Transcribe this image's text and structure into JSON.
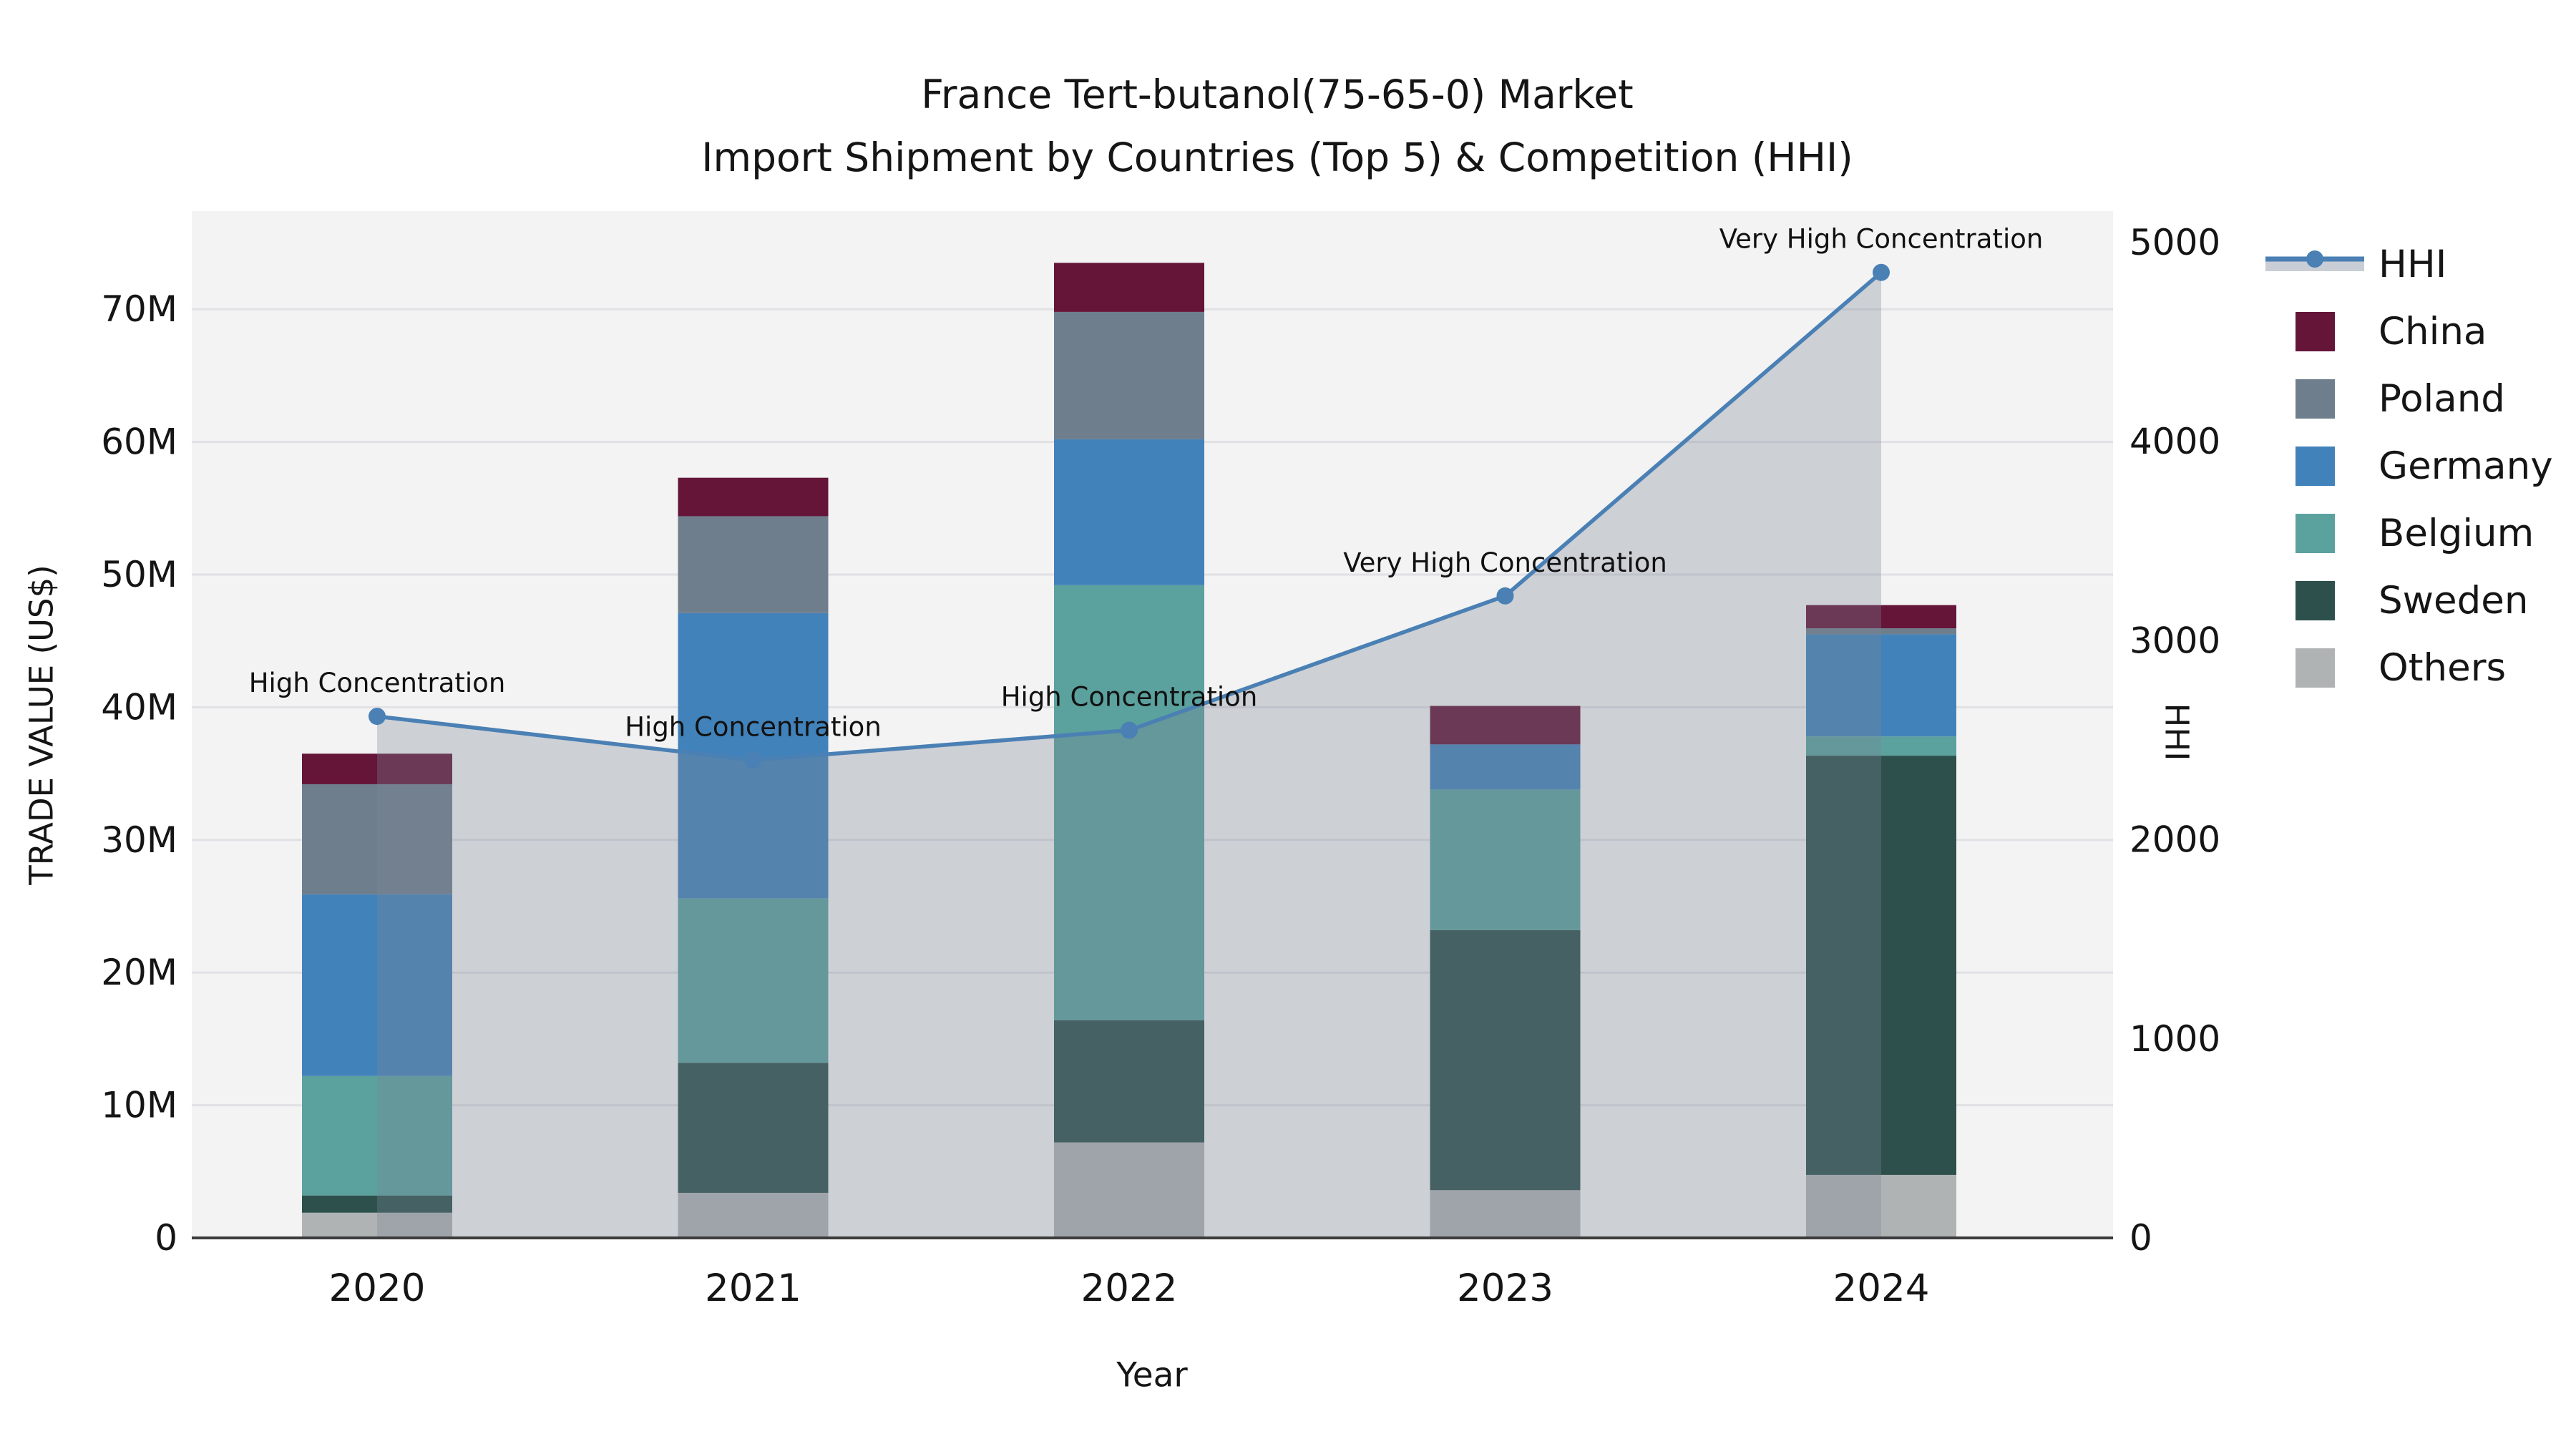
{
  "title": {
    "line1": "France Tert-butanol(75-65-0) Market",
    "line2": "Import Shipment by Countries (Top 5) & Competition (HHI)"
  },
  "axes": {
    "x_title": "Year",
    "y_left_title": "TRADE VALUE (US$)",
    "y_right_title": "HHI",
    "y_left_ticks": [
      {
        "value": 0,
        "label": "0"
      },
      {
        "value": 10,
        "label": "10M"
      },
      {
        "value": 20,
        "label": "20M"
      },
      {
        "value": 30,
        "label": "30M"
      },
      {
        "value": 40,
        "label": "40M"
      },
      {
        "value": 50,
        "label": "50M"
      },
      {
        "value": 60,
        "label": "60M"
      },
      {
        "value": 70,
        "label": "70M"
      }
    ],
    "y_right_ticks": [
      {
        "value": 0,
        "label": "0"
      },
      {
        "value": 1000,
        "label": "1000"
      },
      {
        "value": 2000,
        "label": "2000"
      },
      {
        "value": 3000,
        "label": "3000"
      },
      {
        "value": 4000,
        "label": "4000"
      },
      {
        "value": 5000,
        "label": "5000"
      }
    ]
  },
  "legend": {
    "items": [
      {
        "label": "HHI",
        "type": "line",
        "color": "#4a80b4",
        "band_color": "#c9cdd6"
      },
      {
        "label": "China",
        "type": "patch",
        "color": "#641538"
      },
      {
        "label": "Poland",
        "type": "patch",
        "color": "#6f7e8d"
      },
      {
        "label": "Germany",
        "type": "patch",
        "color": "#4282ba"
      },
      {
        "label": "Belgium",
        "type": "patch",
        "color": "#5ba19e"
      },
      {
        "label": "Sweden",
        "type": "patch",
        "color": "#2d504c"
      },
      {
        "label": "Others",
        "type": "patch",
        "color": "#b0b3b4"
      }
    ]
  },
  "chart_data": {
    "type": "combo",
    "subtype": "stacked-bar + line",
    "title": "France Tert-butanol(75-65-0) Market — Import Shipment by Countries (Top 5) & Competition (HHI)",
    "xlabel": "Year",
    "ylabel_left": "TRADE VALUE (US$)",
    "ylabel_right": "HHI",
    "categories": [
      "2020",
      "2021",
      "2022",
      "2023",
      "2024"
    ],
    "bar_unit": "million US$",
    "stack_order_bottom_to_top": [
      "Others",
      "Sweden",
      "Belgium",
      "Germany",
      "Poland",
      "China"
    ],
    "series": [
      {
        "name": "China",
        "color": "#641538",
        "values": [
          2.3,
          2.9,
          3.7,
          2.9,
          1.75
        ]
      },
      {
        "name": "Poland",
        "color": "#6f7e8d",
        "values": [
          8.3,
          7.3,
          9.6,
          0.0,
          0.45
        ]
      },
      {
        "name": "Germany",
        "color": "#4282ba",
        "values": [
          13.7,
          21.5,
          11.0,
          3.4,
          7.7
        ]
      },
      {
        "name": "Belgium",
        "color": "#5ba19e",
        "values": [
          9.0,
          12.4,
          32.8,
          10.6,
          1.45
        ]
      },
      {
        "name": "Sweden",
        "color": "#2d504c",
        "values": [
          1.3,
          9.8,
          9.2,
          19.6,
          31.6
        ]
      },
      {
        "name": "Others",
        "color": "#b0b3b4",
        "values": [
          1.9,
          3.4,
          7.2,
          3.6,
          4.75
        ]
      }
    ],
    "bar_totals": [
      36.5,
      57.3,
      73.5,
      40.1,
      47.7
    ],
    "line_series": {
      "name": "HHI",
      "color": "#4a80b4",
      "area_fill": "rgba(125,133,150,0.32)",
      "values": [
        2620,
        2400,
        2550,
        3225,
        4850
      ]
    },
    "annotations": [
      {
        "category": "2020",
        "text": "High Concentration"
      },
      {
        "category": "2021",
        "text": "High Concentration"
      },
      {
        "category": "2022",
        "text": "High Concentration"
      },
      {
        "category": "2023",
        "text": "Very High Concentration"
      },
      {
        "category": "2024",
        "text": "Very High Concentration"
      }
    ],
    "ylim_left": [
      0,
      77.4
    ],
    "ylim_right": [
      0,
      5158
    ],
    "grid": "horizontal",
    "legend_position": "right",
    "plot_bg": "#f3f3f4",
    "grid_color": "#e1e1e5",
    "spine_color": "#3c3c3c"
  }
}
